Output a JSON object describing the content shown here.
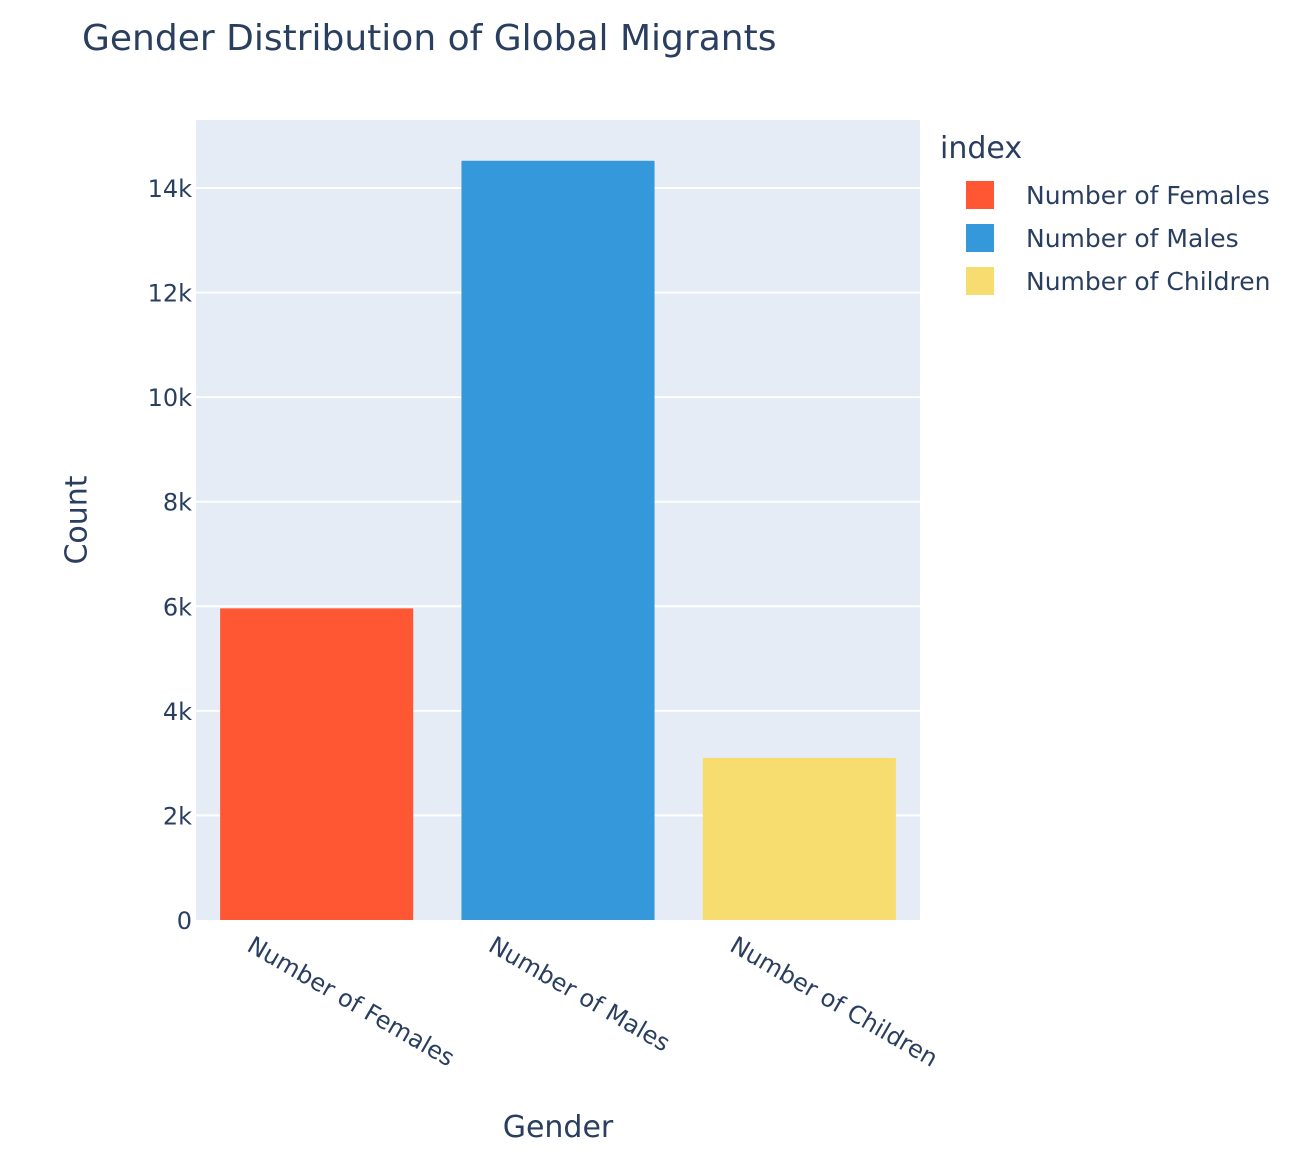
{
  "chart_data": {
    "type": "bar",
    "title": "Gender Distribution of Global Migrants",
    "xlabel": "Gender",
    "ylabel": "Count",
    "categories": [
      "Number of Females",
      "Number of Males",
      "Number of Children"
    ],
    "values": [
      5960,
      14520,
      3100
    ],
    "colors": [
      "#ff5733",
      "#3498db",
      "#f7dc6f"
    ],
    "ylim": [
      0,
      15300
    ],
    "yticks": [
      0,
      2000,
      4000,
      6000,
      8000,
      10000,
      12000,
      14000
    ],
    "ytick_labels": [
      "0",
      "2k",
      "4k",
      "6k",
      "8k",
      "10k",
      "12k",
      "14k"
    ],
    "grid": true,
    "legend": {
      "title": "index",
      "placement": "right",
      "items": [
        "Number of Females",
        "Number of Males",
        "Number of Children"
      ]
    }
  }
}
